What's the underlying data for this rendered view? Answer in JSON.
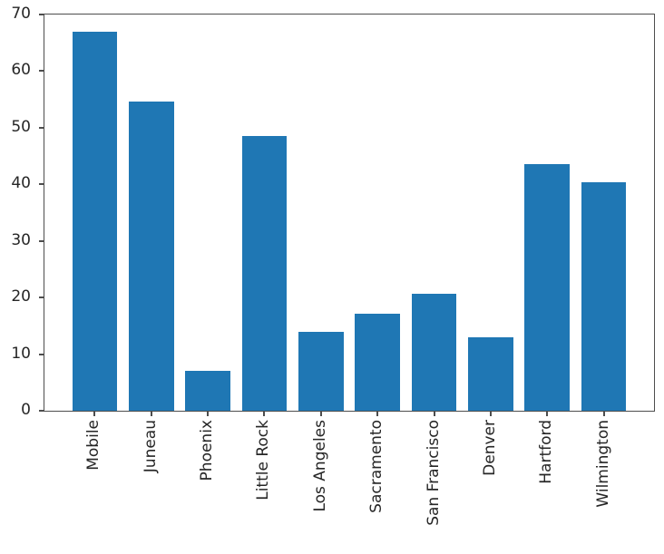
{
  "figure": {
    "title": "",
    "background": "#ffffff"
  },
  "chart_data": {
    "type": "bar",
    "title": "",
    "xlabel": "",
    "ylabel": "",
    "categories": [
      "Mobile",
      "Juneau",
      "Phoenix",
      "Little Rock",
      "Los Angeles",
      "Sacramento",
      "San Francisco",
      "Denver",
      "Hartford",
      "Wilmington"
    ],
    "values": [
      67.0,
      54.7,
      7.0,
      48.5,
      14.0,
      17.2,
      20.7,
      13.0,
      43.5,
      40.4
    ],
    "ylim": [
      0,
      70
    ],
    "yticks": [
      0,
      10,
      20,
      30,
      40,
      50,
      60,
      70
    ],
    "xtick_rotation_degrees": 90,
    "bar_width_fraction": 0.8,
    "grid": false,
    "legend": "none",
    "bar_color": "#1f77b4"
  },
  "colors": {
    "bar": "#1f77b4",
    "spine": "#4d4d4d",
    "tick": "#4d4d4d",
    "label_text": "#262626",
    "background": "#ffffff"
  }
}
